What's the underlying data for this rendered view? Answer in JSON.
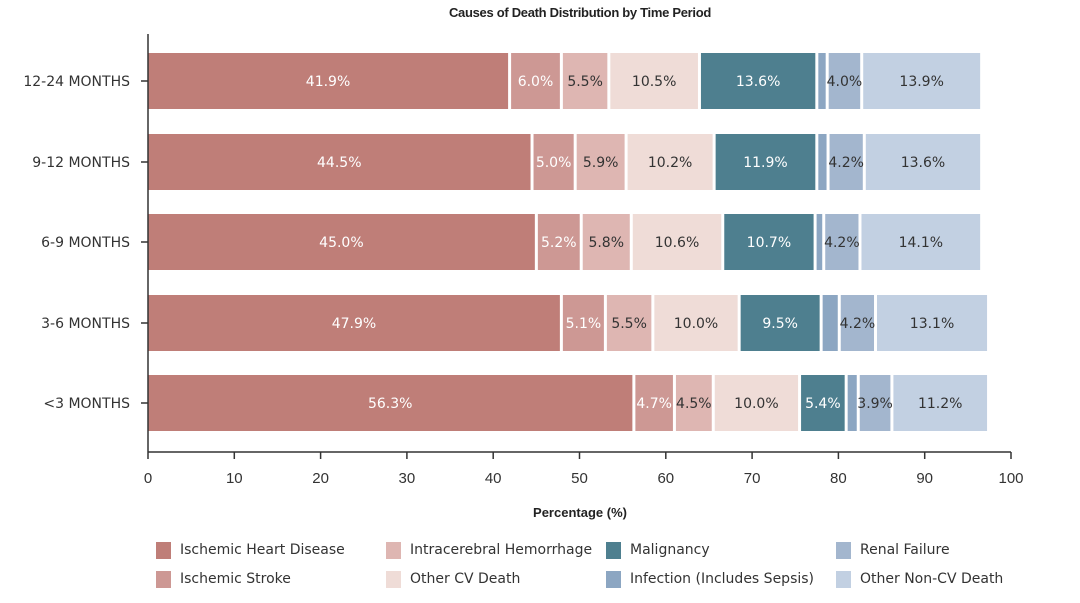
{
  "chart_data": {
    "type": "bar",
    "orientation": "horizontal",
    "stacked": true,
    "title": "Causes of Death Distribution by Time Period",
    "xlabel": "Percentage (%)",
    "ylabel": "",
    "xlim": [
      0,
      100
    ],
    "xticks": [
      0,
      10,
      20,
      30,
      40,
      50,
      60,
      70,
      80,
      90,
      100
    ],
    "grid": false,
    "legend_position": "bottom",
    "categories": [
      "12-24 MONTHS",
      "9-12 MONTHS",
      "6-9 MONTHS",
      "3-6 MONTHS",
      "<3 MONTHS"
    ],
    "series": [
      {
        "name": "Ischemic Heart Disease",
        "color": "#bf7e78",
        "label_color": "#ffffff",
        "values": [
          41.9,
          44.5,
          45.0,
          47.9,
          56.3
        ],
        "labels": [
          "41.9%",
          "44.5%",
          "45.0%",
          "47.9%",
          "56.3%"
        ]
      },
      {
        "name": "Ischemic Stroke",
        "color": "#cd9894",
        "label_color": "#ffffff",
        "values": [
          6.0,
          5.0,
          5.2,
          5.1,
          4.7
        ],
        "labels": [
          "6.0%",
          "5.0%",
          "5.2%",
          "5.1%",
          "4.7%"
        ]
      },
      {
        "name": "Intracerebral Hemorrhage",
        "color": "#deb6b2",
        "label_color": "#333333",
        "values": [
          5.5,
          5.9,
          5.8,
          5.5,
          4.5
        ],
        "labels": [
          "5.5%",
          "5.9%",
          "5.8%",
          "5.5%",
          "4.5%"
        ]
      },
      {
        "name": "Other CV Death",
        "color": "#efdcd7",
        "label_color": "#333333",
        "values": [
          10.5,
          10.2,
          10.6,
          10.0,
          10.0
        ],
        "labels": [
          "10.5%",
          "10.2%",
          "10.6%",
          "10.0%",
          "10.0%"
        ]
      },
      {
        "name": "Malignancy",
        "color": "#4e7f8f",
        "label_color": "#ffffff",
        "values": [
          13.6,
          11.9,
          10.7,
          9.5,
          5.4
        ],
        "labels": [
          "13.6%",
          "11.9%",
          "10.7%",
          "9.5%",
          "5.4%"
        ]
      },
      {
        "name": "Infection (Includes Sepsis)",
        "color": "#8ca6c2",
        "label_color": "#333333",
        "values": [
          1.2,
          1.3,
          1.0,
          2.1,
          1.4
        ],
        "labels": [
          "",
          "",
          "",
          "",
          ""
        ]
      },
      {
        "name": "Renal Failure",
        "color": "#a3b6ce",
        "label_color": "#333333",
        "values": [
          4.0,
          4.2,
          4.2,
          4.2,
          3.9
        ],
        "labels": [
          "4.0%",
          "4.2%",
          "4.2%",
          "4.2%",
          "3.9%"
        ]
      },
      {
        "name": "Other Non-CV Death",
        "color": "#c2d0e2",
        "label_color": "#333333",
        "values": [
          13.9,
          13.6,
          14.1,
          13.1,
          11.2
        ],
        "labels": [
          "13.9%",
          "13.6%",
          "14.1%",
          "13.1%",
          "11.2%"
        ]
      }
    ],
    "legend_order": [
      "Ischemic Heart Disease",
      "Intracerebral Hemorrhage",
      "Malignancy",
      "Renal Failure",
      "Ischemic Stroke",
      "Other CV Death",
      "Infection (Includes Sepsis)",
      "Other Non-CV Death"
    ]
  }
}
